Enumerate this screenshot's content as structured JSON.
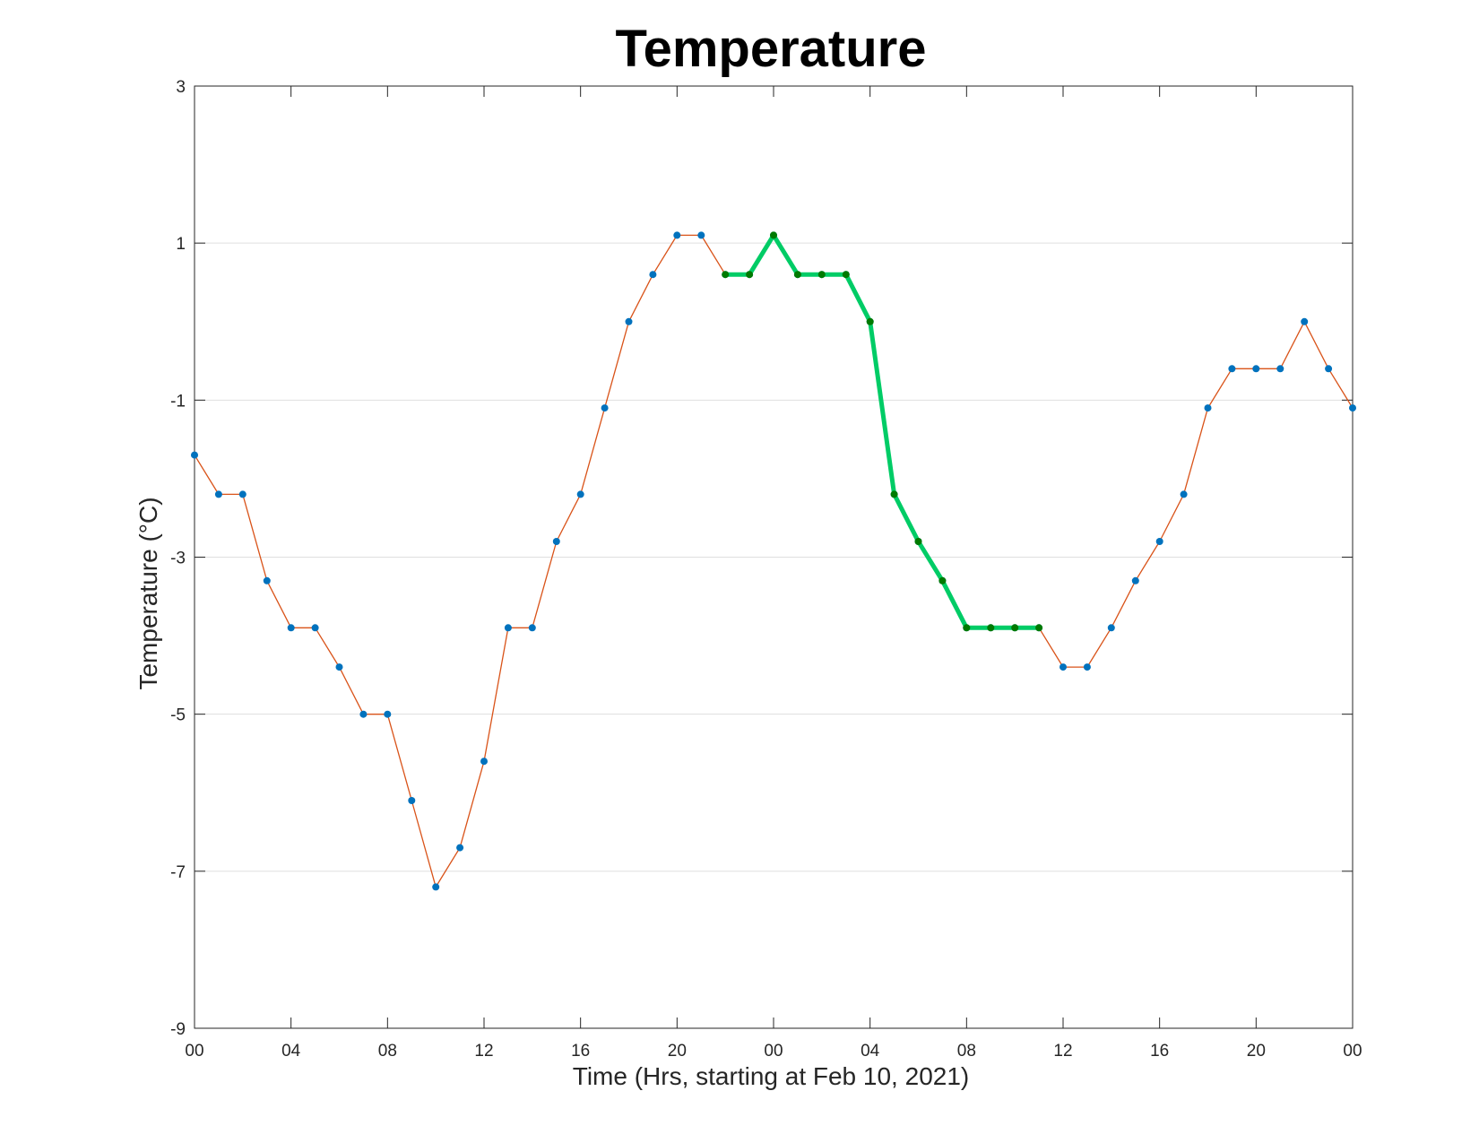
{
  "chart_data": {
    "type": "line",
    "title": "Temperature",
    "xlabel": "Time (Hrs, starting at Feb 10, 2021)",
    "ylabel": "Temperature (°C)",
    "x_unit": "hour",
    "xlim": [
      0,
      48
    ],
    "ylim": [
      -9,
      3
    ],
    "x_tick_values": [
      0,
      4,
      8,
      12,
      16,
      20,
      24,
      28,
      32,
      36,
      40,
      44,
      48
    ],
    "x_tick_labels": [
      "00",
      "04",
      "08",
      "12",
      "16",
      "20",
      "00",
      "04",
      "08",
      "12",
      "16",
      "20",
      "00"
    ],
    "y_ticks": [
      -9,
      -7,
      -5,
      -3,
      -1,
      1,
      3
    ],
    "y_tick_labels": [
      "-9",
      "-7",
      "-5",
      "-3",
      "-1",
      "1",
      "3"
    ],
    "grid": {
      "x": false,
      "y": true
    },
    "colors": {
      "line": "#d95319",
      "marker": "#0072bd",
      "highlight_line": "#00cc66",
      "highlight_marker": "#007a00",
      "grid": "#dfdfdf",
      "axis": "#262626"
    },
    "series": [
      {
        "x": [
          0,
          1,
          2,
          3,
          4,
          5,
          6,
          7,
          8,
          9,
          10,
          11,
          12,
          13,
          14,
          15,
          16,
          17,
          18,
          19,
          20,
          21,
          22,
          23,
          24,
          25,
          26,
          27,
          28,
          29,
          30,
          31,
          32,
          33,
          34,
          35,
          36,
          37,
          38,
          39,
          40,
          41,
          42,
          43,
          44,
          45,
          46,
          47,
          48
        ],
        "values": [
          -1.7,
          -2.2,
          -2.2,
          -3.3,
          -3.9,
          -3.9,
          -4.4,
          -5.0,
          -5.0,
          -6.1,
          -7.2,
          -6.7,
          -5.6,
          -3.9,
          -3.9,
          -2.8,
          -2.2,
          -1.1,
          0.0,
          0.6,
          1.1,
          1.1,
          0.6,
          0.6,
          1.1,
          0.6,
          0.6,
          0.6,
          0.0,
          -2.2,
          -2.8,
          -3.3,
          -3.9,
          -3.9,
          -3.9,
          -3.9,
          -4.4,
          -4.4,
          -3.9,
          -3.3,
          -2.8,
          -2.2,
          -1.1,
          -0.6,
          -0.6,
          -0.6,
          0.0,
          -0.6,
          -1.1
        ]
      },
      {
        "highlight": true,
        "x": [
          22,
          23,
          24,
          25,
          26,
          27,
          28,
          29,
          30,
          31,
          32,
          33,
          34,
          35
        ],
        "values": [
          0.6,
          0.6,
          1.1,
          0.6,
          0.6,
          0.6,
          0.0,
          -2.2,
          -2.8,
          -3.3,
          -3.9,
          -3.9,
          -3.9,
          -3.9
        ]
      }
    ]
  }
}
